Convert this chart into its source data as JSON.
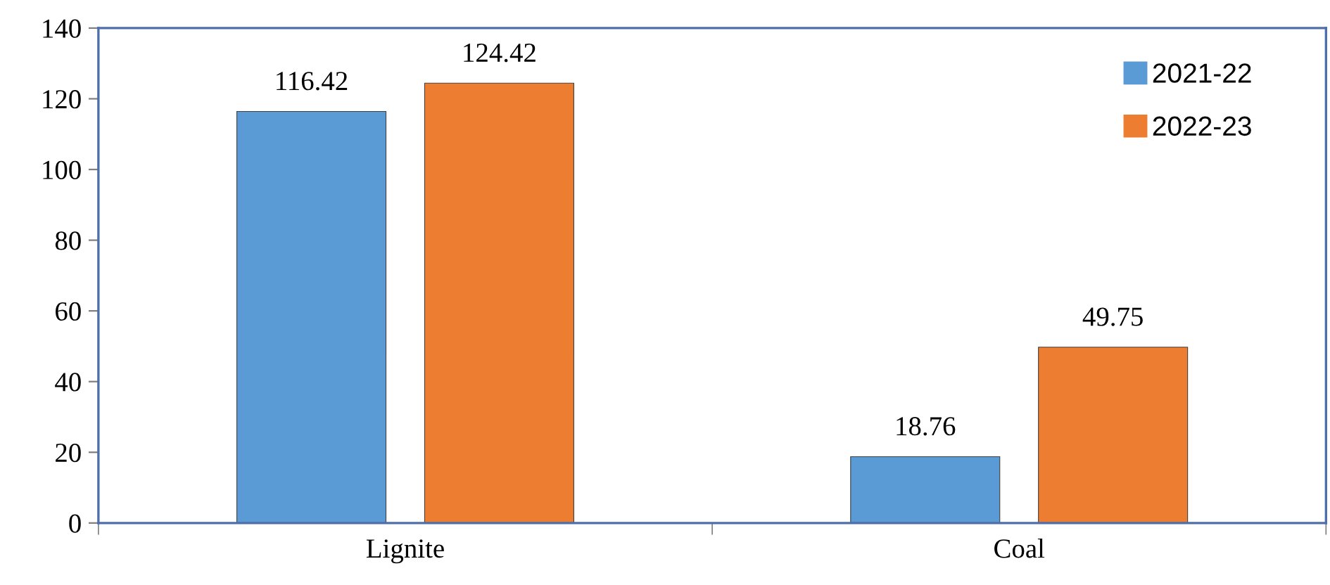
{
  "chart_data": {
    "type": "bar",
    "categories": [
      "Lignite",
      "Coal"
    ],
    "series": [
      {
        "name": "2021-22",
        "color": "#5b9bd5",
        "values": [
          116.42,
          18.76
        ]
      },
      {
        "name": "2022-23",
        "color": "#ed7d31",
        "values": [
          124.42,
          49.75
        ]
      }
    ],
    "ylim": [
      0,
      140
    ],
    "yticks": [
      0,
      20,
      40,
      60,
      80,
      100,
      120,
      140
    ],
    "data_labels": true,
    "grid": false,
    "legend": "top right"
  }
}
